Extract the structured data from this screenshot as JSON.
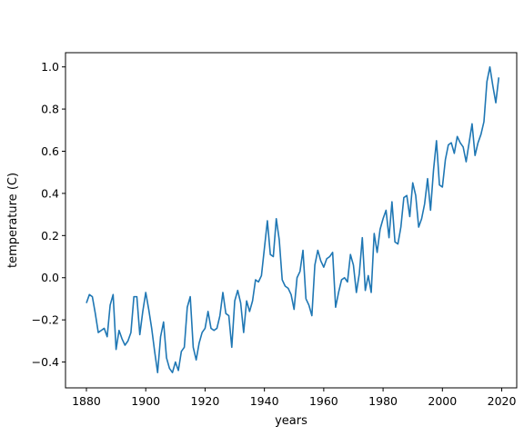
{
  "chart_data": {
    "type": "line",
    "title": "",
    "xlabel": "years",
    "ylabel": "temperature (C)",
    "xlim": [
      1872.95,
      2025.05
    ],
    "ylim": [
      -0.5225,
      1.0675
    ],
    "xticks": [
      1880,
      1900,
      1920,
      1940,
      1960,
      1980,
      2000,
      2020
    ],
    "yticks": [
      -0.4,
      -0.2,
      0.0,
      0.2,
      0.4,
      0.6,
      0.8,
      1.0
    ],
    "xtick_labels": [
      "1880",
      "1900",
      "1920",
      "1940",
      "1960",
      "1980",
      "2000",
      "2020"
    ],
    "ytick_labels": [
      "−0.4",
      "−0.2",
      "0.0",
      "0.2",
      "0.4",
      "0.6",
      "0.8",
      "1.0"
    ],
    "grid": false,
    "color": "#1f77b4",
    "series": [
      {
        "x": [
          1880,
          1881,
          1882,
          1883,
          1884,
          1885,
          1886,
          1887,
          1888,
          1889,
          1890,
          1891,
          1892,
          1893,
          1894,
          1895,
          1896,
          1897,
          1898,
          1899,
          1900,
          1901,
          1902,
          1903,
          1904,
          1905,
          1906,
          1907,
          1908,
          1909,
          1910,
          1911,
          1912,
          1913,
          1914,
          1915,
          1916,
          1917,
          1918,
          1919,
          1920,
          1921,
          1922,
          1923,
          1924,
          1925,
          1926,
          1927,
          1928,
          1929,
          1930,
          1931,
          1932,
          1933,
          1934,
          1935,
          1936,
          1937,
          1938,
          1939,
          1940,
          1941,
          1942,
          1943,
          1944,
          1945,
          1946,
          1947,
          1948,
          1949,
          1950,
          1951,
          1952,
          1953,
          1954,
          1955,
          1956,
          1957,
          1958,
          1959,
          1960,
          1961,
          1962,
          1963,
          1964,
          1965,
          1966,
          1967,
          1968,
          1969,
          1970,
          1971,
          1972,
          1973,
          1974,
          1975,
          1976,
          1977,
          1978,
          1979,
          1980,
          1981,
          1982,
          1983,
          1984,
          1985,
          1986,
          1987,
          1988,
          1989,
          1990,
          1991,
          1992,
          1993,
          1994,
          1995,
          1996,
          1997,
          1998,
          1999,
          2000,
          2001,
          2002,
          2003,
          2004,
          2005,
          2006,
          2007,
          2008,
          2009,
          2010,
          2011,
          2012,
          2013,
          2014,
          2015,
          2016,
          2017,
          2018,
          2019
        ],
        "y": [
          -0.12,
          -0.08,
          -0.09,
          -0.17,
          -0.26,
          -0.25,
          -0.24,
          -0.28,
          -0.13,
          -0.08,
          -0.34,
          -0.25,
          -0.29,
          -0.32,
          -0.3,
          -0.26,
          -0.09,
          -0.09,
          -0.27,
          -0.16,
          -0.07,
          -0.15,
          -0.24,
          -0.35,
          -0.45,
          -0.28,
          -0.21,
          -0.38,
          -0.43,
          -0.45,
          -0.4,
          -0.44,
          -0.35,
          -0.33,
          -0.14,
          -0.09,
          -0.33,
          -0.39,
          -0.31,
          -0.26,
          -0.24,
          -0.16,
          -0.24,
          -0.25,
          -0.24,
          -0.18,
          -0.07,
          -0.17,
          -0.18,
          -0.33,
          -0.11,
          -0.06,
          -0.12,
          -0.26,
          -0.11,
          -0.16,
          -0.11,
          -0.01,
          -0.02,
          0.01,
          0.14,
          0.27,
          0.11,
          0.1,
          0.28,
          0.18,
          -0.01,
          -0.04,
          -0.05,
          -0.08,
          -0.15,
          0.0,
          0.03,
          0.13,
          -0.1,
          -0.13,
          -0.18,
          0.06,
          0.13,
          0.08,
          0.05,
          0.09,
          0.1,
          0.12,
          -0.14,
          -0.07,
          -0.01,
          0.0,
          -0.02,
          0.11,
          0.06,
          -0.07,
          0.02,
          0.19,
          -0.06,
          0.01,
          -0.07,
          0.21,
          0.12,
          0.23,
          0.28,
          0.32,
          0.19,
          0.36,
          0.17,
          0.16,
          0.24,
          0.38,
          0.39,
          0.29,
          0.45,
          0.39,
          0.24,
          0.28,
          0.35,
          0.47,
          0.32,
          0.51,
          0.65,
          0.44,
          0.43,
          0.56,
          0.63,
          0.64,
          0.59,
          0.67,
          0.64,
          0.62,
          0.55,
          0.64,
          0.73,
          0.58,
          0.64,
          0.68,
          0.74,
          0.93,
          1.0,
          0.91,
          0.83,
          0.95
        ]
      }
    ]
  }
}
